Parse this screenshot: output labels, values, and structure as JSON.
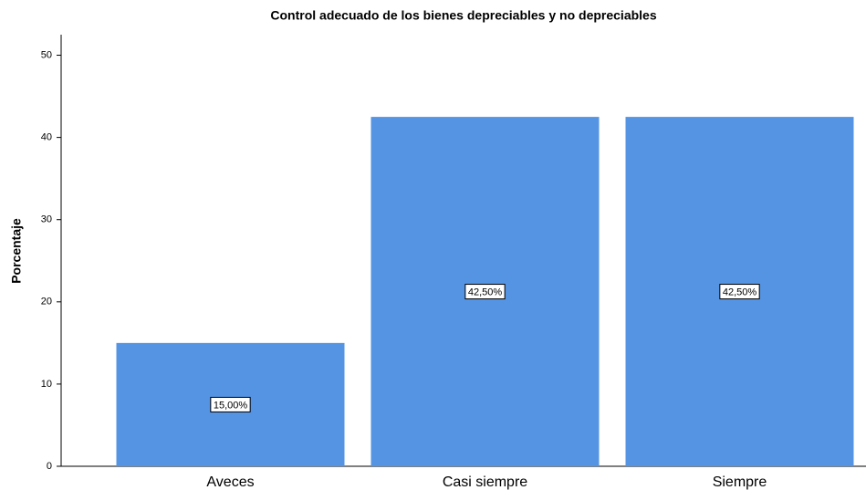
{
  "chart_data": {
    "type": "bar",
    "title": "Control adecuado de los bienes depreciables y no depreciables",
    "y_label": "Porcentaje",
    "categories": [
      "Aveces",
      "Casi siempre",
      "Siempre"
    ],
    "values": [
      15.0,
      42.5,
      42.5
    ],
    "value_labels": [
      "15,00%",
      "42,50%",
      "42,50%"
    ],
    "color": "#5594e3",
    "ylim": [
      0,
      52.5
    ],
    "yticks": [
      0,
      10,
      20,
      30,
      40,
      50
    ],
    "grid": false
  }
}
